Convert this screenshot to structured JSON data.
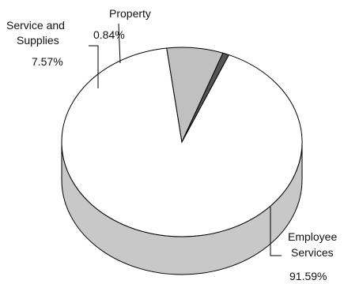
{
  "chart_data": {
    "type": "pie",
    "title": "",
    "three_d": true,
    "legend": "none",
    "slices": [
      {
        "label": "Employee Services",
        "label_lines": [
          "Employee",
          "Services"
        ],
        "value": 91.59,
        "value_text": "91.59%",
        "color": "#ffffff"
      },
      {
        "label": "Service and Supplies",
        "label_lines": [
          "Service and",
          "Supplies"
        ],
        "value": 7.57,
        "value_text": "7.57%",
        "color": "#c0c0c0"
      },
      {
        "label": "Property",
        "label_lines": [
          "Property"
        ],
        "value": 0.84,
        "value_text": "0.84%",
        "color": "#555555"
      }
    ]
  }
}
